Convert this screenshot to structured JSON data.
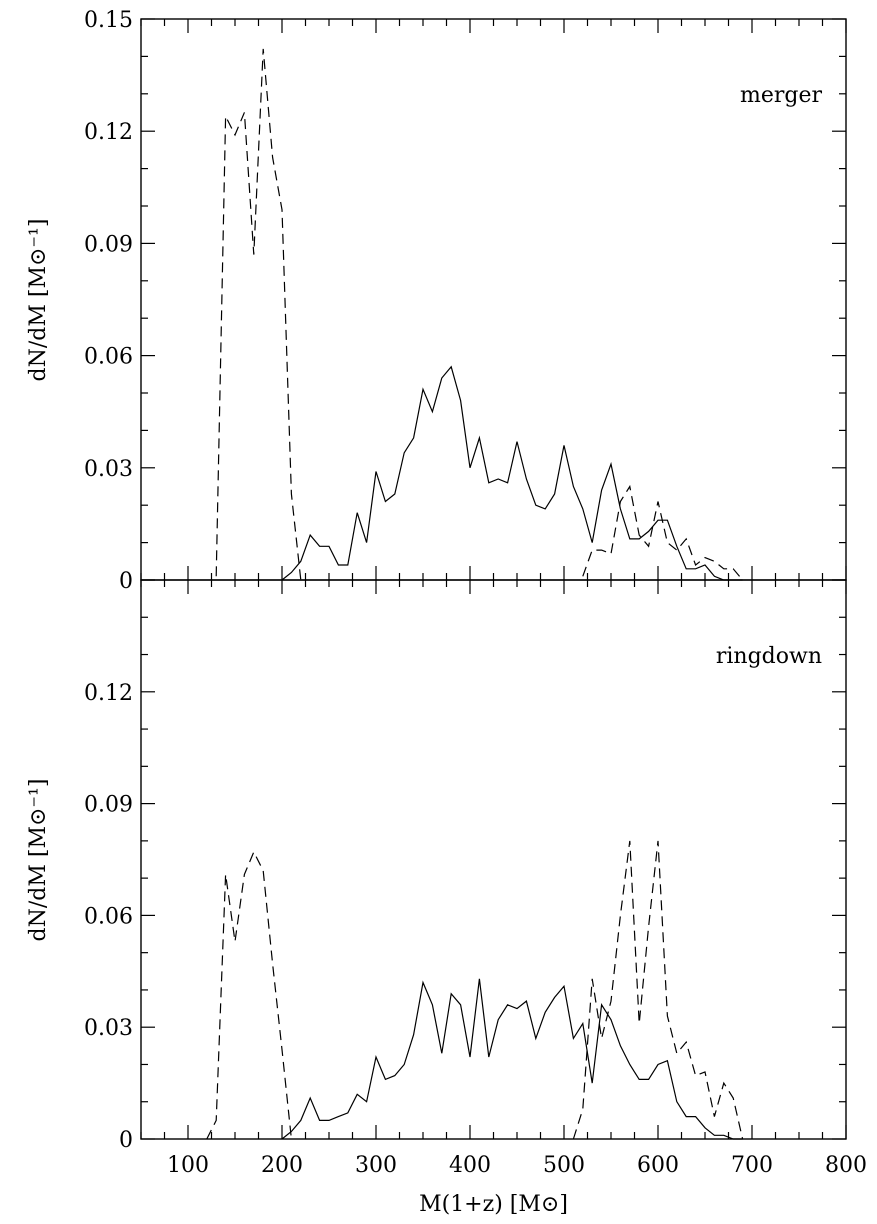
{
  "chart_data": [
    {
      "type": "line",
      "panel_label": "merger",
      "xlim": [
        50,
        800
      ],
      "ylim": [
        0,
        0.15
      ],
      "x_ticks": [
        "100",
        "200",
        "300",
        "400",
        "500",
        "600",
        "700",
        "800"
      ],
      "y_ticks": [
        "0",
        "0.03",
        "0.06",
        "0.09",
        "0.12",
        "0.15"
      ],
      "ylabel": "dN/dM [M⊙⁻¹]",
      "xlabel": "",
      "series": [
        {
          "style": "solid",
          "x": [
            200,
            210,
            220,
            230,
            240,
            250,
            260,
            270,
            280,
            290,
            300,
            310,
            320,
            330,
            340,
            350,
            360,
            370,
            380,
            390,
            400,
            410,
            420,
            430,
            440,
            450,
            460,
            470,
            480,
            490,
            500,
            510,
            520,
            530,
            540,
            550,
            560,
            570,
            580,
            590,
            600,
            610,
            620,
            630,
            640,
            650,
            660,
            670,
            680,
            690
          ],
          "y": [
            0.0,
            0.002,
            0.005,
            0.012,
            0.009,
            0.009,
            0.004,
            0.004,
            0.018,
            0.01,
            0.029,
            0.021,
            0.023,
            0.034,
            0.038,
            0.051,
            0.045,
            0.054,
            0.057,
            0.048,
            0.03,
            0.038,
            0.026,
            0.027,
            0.026,
            0.037,
            0.027,
            0.02,
            0.019,
            0.023,
            0.036,
            0.025,
            0.019,
            0.01,
            0.024,
            0.031,
            0.019,
            0.011,
            0.011,
            0.013,
            0.016,
            0.016,
            0.009,
            0.003,
            0.003,
            0.004,
            0.001,
            0.0,
            0.0,
            0.0
          ]
        },
        {
          "style": "dashed",
          "x": [
            130,
            140,
            150,
            160,
            170,
            180,
            190,
            200,
            210,
            220
          ],
          "y": [
            0.001,
            0.124,
            0.119,
            0.125,
            0.087,
            0.142,
            0.113,
            0.099,
            0.023,
            0.0
          ]
        },
        {
          "style": "dashed",
          "x": [
            520,
            530,
            540,
            550,
            560,
            570,
            580,
            590,
            600,
            610,
            620,
            630,
            640,
            650,
            660,
            670,
            680,
            690
          ],
          "y": [
            0.001,
            0.008,
            0.008,
            0.007,
            0.021,
            0.025,
            0.012,
            0.009,
            0.021,
            0.01,
            0.008,
            0.011,
            0.004,
            0.006,
            0.005,
            0.003,
            0.003,
            0.0
          ]
        }
      ]
    },
    {
      "type": "line",
      "panel_label": "ringdown",
      "xlim": [
        50,
        800
      ],
      "ylim": [
        0,
        0.15
      ],
      "x_ticks": [
        "100",
        "200",
        "300",
        "400",
        "500",
        "600",
        "700",
        "800"
      ],
      "y_ticks": [
        "0",
        "0.03",
        "0.06",
        "0.09",
        "0.12"
      ],
      "ylabel": "dN/dM [M⊙⁻¹]",
      "xlabel": "M(1+z) [M⊙]",
      "series": [
        {
          "style": "solid",
          "x": [
            200,
            210,
            220,
            230,
            240,
            250,
            260,
            270,
            280,
            290,
            300,
            310,
            320,
            330,
            340,
            350,
            360,
            370,
            380,
            390,
            400,
            410,
            420,
            430,
            440,
            450,
            460,
            470,
            480,
            490,
            500,
            510,
            520,
            530,
            540,
            550,
            560,
            570,
            580,
            590,
            600,
            610,
            620,
            630,
            640,
            650,
            660,
            670,
            680,
            690
          ],
          "y": [
            0.0,
            0.002,
            0.005,
            0.011,
            0.005,
            0.005,
            0.006,
            0.007,
            0.012,
            0.01,
            0.022,
            0.016,
            0.017,
            0.02,
            0.028,
            0.042,
            0.036,
            0.023,
            0.039,
            0.036,
            0.022,
            0.043,
            0.022,
            0.032,
            0.036,
            0.035,
            0.037,
            0.027,
            0.034,
            0.038,
            0.041,
            0.027,
            0.031,
            0.015,
            0.036,
            0.032,
            0.025,
            0.02,
            0.016,
            0.016,
            0.02,
            0.021,
            0.01,
            0.006,
            0.006,
            0.003,
            0.001,
            0.001,
            0.0,
            0.0
          ]
        },
        {
          "style": "dashed",
          "x": [
            120,
            130,
            140,
            150,
            160,
            170,
            180,
            190,
            200,
            210
          ],
          "y": [
            0.0,
            0.005,
            0.071,
            0.053,
            0.071,
            0.077,
            0.072,
            0.047,
            0.024,
            0.0
          ]
        },
        {
          "style": "dashed",
          "x": [
            510,
            520,
            530,
            540,
            550,
            560,
            570,
            580,
            590,
            600,
            610,
            620,
            630,
            640,
            650,
            660,
            670,
            680,
            690
          ],
          "y": [
            0.0,
            0.008,
            0.043,
            0.027,
            0.037,
            0.06,
            0.08,
            0.031,
            0.057,
            0.08,
            0.033,
            0.023,
            0.026,
            0.017,
            0.018,
            0.006,
            0.015,
            0.011,
            0.0
          ]
        }
      ]
    }
  ]
}
